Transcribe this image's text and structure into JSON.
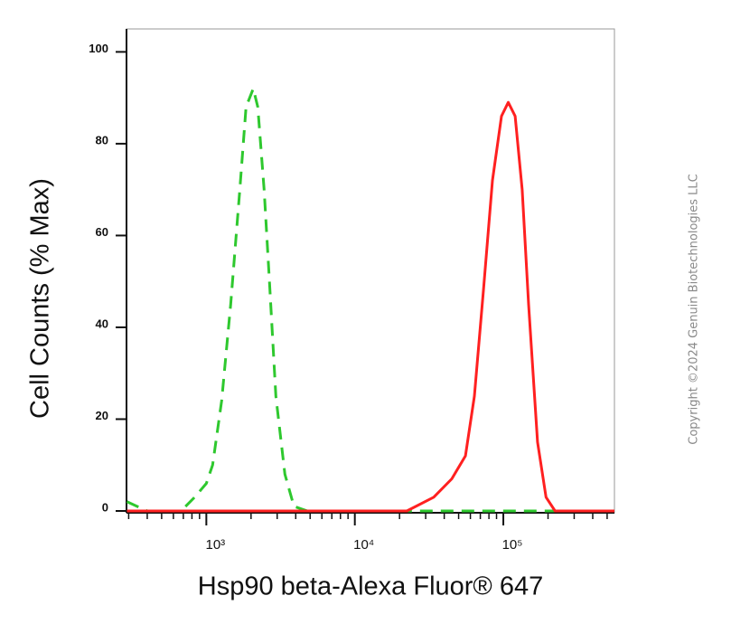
{
  "chart_data": {
    "type": "line",
    "xlabel": "Hsp90 beta-Alexa Fluor® 647",
    "ylabel": "Cell Counts (% Max)",
    "copyright": "Copyright ©2024 Genuin Biotechnologies LLC",
    "xscale": "log",
    "xlim": [
      290,
      560000
    ],
    "ylim": [
      0,
      105
    ],
    "xticks": [
      {
        "value": 1000,
        "label": "10³"
      },
      {
        "value": 10000,
        "label": "10⁴"
      },
      {
        "value": 100000,
        "label": "10⁵"
      }
    ],
    "xminorticks": [
      300,
      400,
      500,
      600,
      700,
      800,
      900,
      2000,
      3000,
      4000,
      5000,
      6000,
      7000,
      8000,
      9000,
      20000,
      30000,
      40000,
      50000,
      60000,
      70000,
      80000,
      90000,
      200000,
      300000,
      400000,
      500000
    ],
    "yticks": [
      0,
      20,
      40,
      60,
      80,
      100
    ],
    "series": [
      {
        "color": "#2ec82e",
        "linestyle": "dashed",
        "x": [
          292,
          400,
          676,
          834,
          1000,
          1103,
          1268,
          1459,
          1680,
          1851,
          2070,
          2220,
          2450,
          2660,
          2940,
          3380,
          3890,
          4790,
          560000
        ],
        "values": [
          2,
          0,
          0,
          3,
          6,
          10,
          24,
          45,
          70,
          88,
          92,
          88,
          70,
          50,
          25,
          8,
          1,
          0,
          0
        ]
      },
      {
        "color": "#ff2020",
        "linestyle": "solid",
        "x": [
          292,
          10000,
          22400,
          34000,
          45000,
          55600,
          63800,
          73400,
          84500,
          97200,
          108000,
          120000,
          134000,
          148000,
          170000,
          194000,
          223000,
          560000
        ],
        "values": [
          0,
          0,
          0,
          3,
          7,
          12,
          25,
          48,
          72,
          86,
          89,
          86,
          70,
          45,
          15,
          3,
          0,
          0
        ]
      }
    ]
  }
}
